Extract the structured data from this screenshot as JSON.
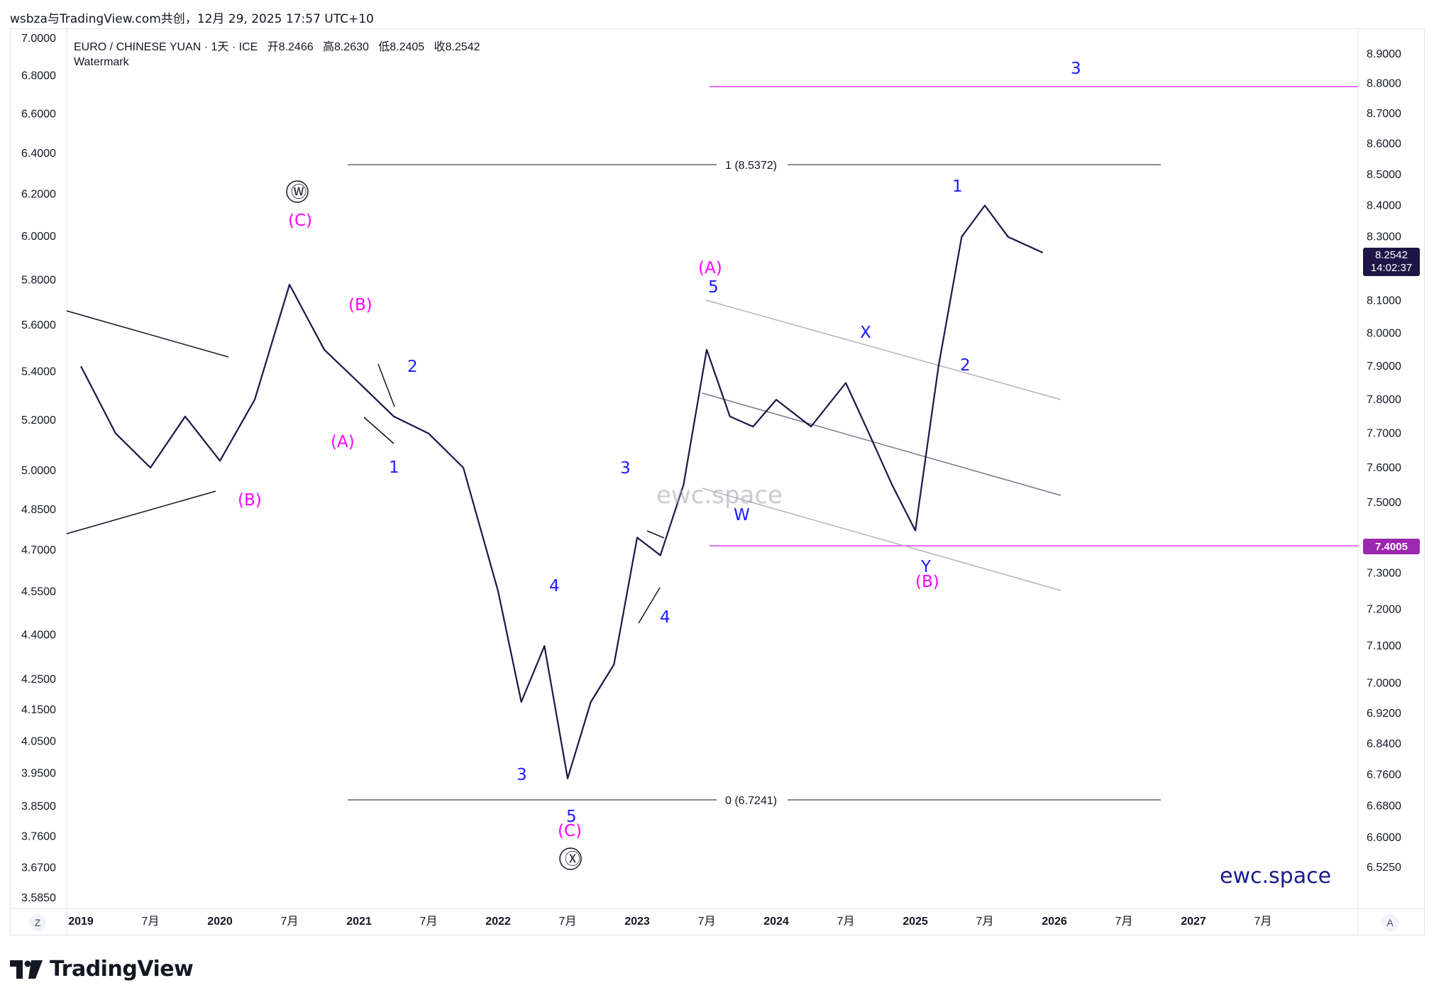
{
  "header": {
    "meta": "wsbza与TradingView.com共创，12月 29, 2025 17:57 UTC+10"
  },
  "legend": {
    "symbol": "EURO / CHINESE YUAN · 1天 · ICE",
    "open_label": "开",
    "open": "8.2466",
    "high_label": "高",
    "high": "8.2630",
    "low_label": "低",
    "low": "8.2405",
    "close_label": "收",
    "close": "8.2542",
    "indicator": "Watermark"
  },
  "price_badge": {
    "price": "8.2542",
    "countdown": "14:02:37"
  },
  "level_badge": "7.4005",
  "watermark": "ewc.space",
  "brand_text": "ewc.space",
  "fib": {
    "top": "1 (8.5372)",
    "bottom": "0 (6.7241)"
  },
  "buttons": {
    "timezone": "Z",
    "auto_scale": "A"
  },
  "footer": {
    "logo_text": "TradingView"
  },
  "colors": {
    "wave_blue": "#1a1aff",
    "wave_magenta": "#ff00ff",
    "level_magenta": "#e040fb",
    "candles": "#1e1546"
  },
  "chart_data": {
    "type": "line",
    "title": "EURO / CHINESE YUAN · 1天 · ICE",
    "x_axis_ticks": [
      "2019",
      "7月",
      "2020",
      "7月",
      "2021",
      "7月",
      "2022",
      "7月",
      "2023",
      "7月",
      "2024",
      "7月",
      "2025",
      "7月",
      "2026",
      "7月",
      "2027",
      "7月"
    ],
    "y_left_ticks": [
      "7.0000",
      "6.8000",
      "6.6000",
      "6.4000",
      "6.2000",
      "6.0000",
      "5.8000",
      "5.6000",
      "5.4000",
      "5.2000",
      "5.0000",
      "4.8500",
      "4.7000",
      "4.5500",
      "4.4000",
      "4.2500",
      "4.1500",
      "4.0500",
      "3.9500",
      "3.8500",
      "3.7600",
      "3.6700",
      "3.5850"
    ],
    "y_right_ticks": [
      "8.9000",
      "8.8000",
      "8.7000",
      "8.6000",
      "8.5000",
      "8.4000",
      "8.3000",
      "8.1000",
      "8.0000",
      "7.9000",
      "7.8000",
      "7.7000",
      "7.6000",
      "7.5000",
      "7.3000",
      "7.2000",
      "7.1000",
      "7.0000",
      "6.9200",
      "6.8400",
      "6.7600",
      "6.6800",
      "6.6000",
      "6.5250"
    ],
    "series": [
      {
        "name": "EURO / CHINESE YUAN",
        "x": [
          "2019-01",
          "2019-04",
          "2019-07",
          "2019-10",
          "2020-01",
          "2020-04",
          "2020-07",
          "2020-10",
          "2021-01",
          "2021-04",
          "2021-07",
          "2021-10",
          "2022-01",
          "2022-03",
          "2022-05",
          "2022-07",
          "2022-09",
          "2022-11",
          "2023-01",
          "2023-03",
          "2023-05",
          "2023-07",
          "2023-09",
          "2023-11",
          "2024-01",
          "2024-04",
          "2024-07",
          "2024-09",
          "2024-11",
          "2025-01",
          "2025-03",
          "2025-05",
          "2025-07",
          "2025-09",
          "2025-12"
        ],
        "y": [
          7.9,
          7.7,
          7.6,
          7.75,
          7.62,
          7.8,
          8.15,
          7.95,
          7.85,
          7.75,
          7.7,
          7.6,
          7.25,
          6.95,
          7.1,
          6.75,
          6.95,
          7.05,
          7.4,
          7.35,
          7.55,
          7.95,
          7.75,
          7.72,
          7.8,
          7.72,
          7.85,
          7.7,
          7.55,
          7.42,
          7.9,
          8.3,
          8.4,
          8.3,
          8.25
        ]
      }
    ],
    "fib_levels": [
      {
        "label": "1 (8.5372)",
        "value": 8.5372
      },
      {
        "label": "0 (6.7241)",
        "value": 6.7241
      }
    ],
    "horizontal_levels": [
      8.8,
      7.4005
    ],
    "wave_labels": [
      "Ⓦ",
      "(C)",
      "(B)",
      "(A)",
      "(B)",
      "1",
      "2",
      "3",
      "4",
      "5",
      "(C)",
      "Ⓧ",
      "3",
      "4",
      "(A)",
      "5",
      "W",
      "X",
      "Y",
      "(B)",
      "1",
      "2",
      "3"
    ],
    "last_price": 8.2542
  }
}
